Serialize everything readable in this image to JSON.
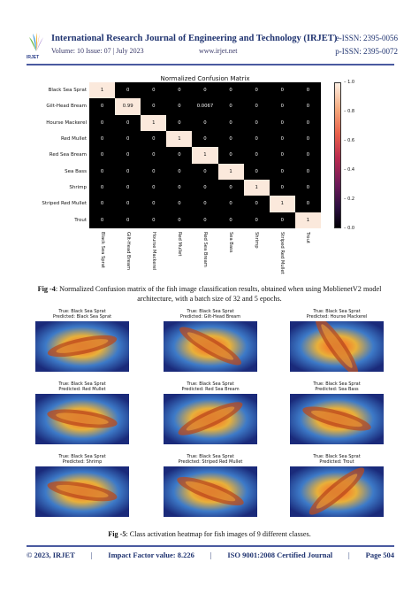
{
  "header": {
    "logo_text": "IRJET",
    "journal_title": "International Research Journal of Engineering and Technology (IRJET)",
    "e_issn": "e-ISSN: 2395-0056",
    "volume": "Volume: 10 Issue: 07 | July 2023",
    "website": "www.irjet.net",
    "p_issn": "p-ISSN: 2395-0072"
  },
  "colors": {
    "accent": "#1f3370",
    "rule": "#4a5aa0"
  },
  "chart_data": {
    "type": "heatmap",
    "title": "Normalized Confusion Matrix",
    "row_labels": [
      "Black Sea Sprat",
      "Gilt-Head Bream",
      "Hourse Mackerel",
      "Red Mullet",
      "Red Sea Bream",
      "Sea Bass",
      "Shrimp",
      "Striped Red Mullet",
      "Trout"
    ],
    "col_labels": [
      "Black Sea Sprat",
      "Gilt-Head Bream",
      "Hourse Mackerel",
      "Red Mullet",
      "Red Sea Bream",
      "Sea Bass",
      "Shrimp",
      "Striped Red Mullet",
      "Trout"
    ],
    "values": [
      [
        "1",
        "0",
        "0",
        "0",
        "0",
        "0",
        "0",
        "0",
        "0"
      ],
      [
        "0",
        "0.99",
        "0",
        "0",
        "0.0067",
        "0",
        "0",
        "0",
        "0"
      ],
      [
        "0",
        "0",
        "1",
        "0",
        "0",
        "0",
        "0",
        "0",
        "0"
      ],
      [
        "0",
        "0",
        "0",
        "1",
        "0",
        "0",
        "0",
        "0",
        "0"
      ],
      [
        "0",
        "0",
        "0",
        "0",
        "1",
        "0",
        "0",
        "0",
        "0"
      ],
      [
        "0",
        "0",
        "0",
        "0",
        "0",
        "1",
        "0",
        "0",
        "0"
      ],
      [
        "0",
        "0",
        "0",
        "0",
        "0",
        "0",
        "1",
        "0",
        "0"
      ],
      [
        "0",
        "0",
        "0",
        "0",
        "0",
        "0",
        "0",
        "1",
        "0"
      ],
      [
        "0",
        "0",
        "0",
        "0",
        "0",
        "0",
        "0",
        "0",
        "1"
      ]
    ],
    "colorbar_ticks": [
      "1.0",
      "0.8",
      "0.6",
      "0.4",
      "0.2",
      "0.0"
    ],
    "colormap": "rocket",
    "vmin": 0,
    "vmax": 1
  },
  "fig4_caption": {
    "label": "Fig -4",
    "text": ": Normalized Confusion matrix of the fish image classification results, obtained when using MoblienetV2 model architecture, with a batch size of 32 and 5 epochs."
  },
  "heatmaps": [
    {
      "true_label": "True: Black Sea Sprat",
      "pred_label": "Predicted: Black Sea Sprat"
    },
    {
      "true_label": "True: Black Sea Sprat",
      "pred_label": "Predicted: Gilt-Head Bream"
    },
    {
      "true_label": "True: Black Sea Sprat",
      "pred_label": "Predicted: Hourse Mackerel"
    },
    {
      "true_label": "True: Black Sea Sprat",
      "pred_label": "Predicted: Red Mullet"
    },
    {
      "true_label": "True: Black Sea Sprat",
      "pred_label": "Predicted: Red Sea Bream"
    },
    {
      "true_label": "True: Black Sea Sprat",
      "pred_label": "Predicted: Sea Bass"
    },
    {
      "true_label": "True: Black Sea Sprat",
      "pred_label": "Predicted: Shrimp"
    },
    {
      "true_label": "True: Black Sea Sprat",
      "pred_label": "Predicted: Striped Red Mullet"
    },
    {
      "true_label": "True: Black Sea Sprat",
      "pred_label": "Predicted: Trout"
    }
  ],
  "fig5_caption": {
    "label": "Fig -5",
    "text": ": Class activation heatmap for fish images of 9 different classes."
  },
  "footer": {
    "copyright": "© 2023, IRJET",
    "impact": "Impact Factor value: 8.226",
    "iso": "ISO 9001:2008 Certified Journal",
    "page": "Page 504",
    "separator": "|"
  }
}
